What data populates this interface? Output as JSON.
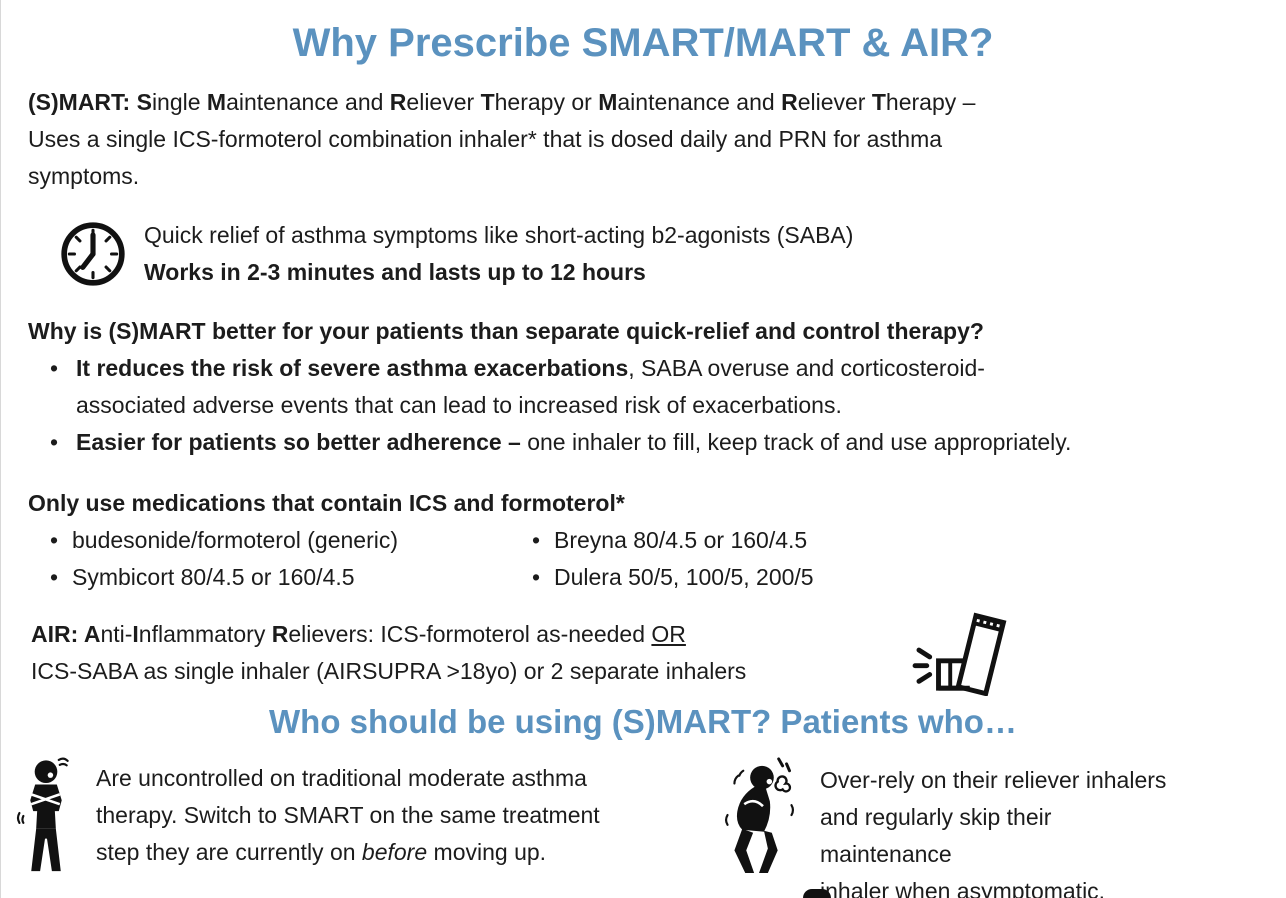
{
  "page": {
    "accent_color": "#5b92bf",
    "ink_color": "#1c1c1c"
  },
  "ui": {
    "bullet": "•"
  },
  "header": {
    "title": "Why Prescribe SMART/MART & AIR?"
  },
  "smart_definition": {
    "segments": [
      {
        "t": "(S)MART: ",
        "b": true
      },
      {
        "t": "S",
        "b": true
      },
      {
        "t": "ingle "
      },
      {
        "t": "M",
        "b": true
      },
      {
        "t": "aintenance and "
      },
      {
        "t": "R",
        "b": true
      },
      {
        "t": "eliever "
      },
      {
        "t": "T",
        "b": true
      },
      {
        "t": "herapy or "
      },
      {
        "t": "M",
        "b": true
      },
      {
        "t": "aintenance and "
      },
      {
        "t": "R",
        "b": true
      },
      {
        "t": "eliever "
      },
      {
        "t": "T",
        "b": true
      },
      {
        "t": "herapy –\nUses a single ICS-formoterol combination inhaler* that is dosed daily and PRN for asthma\nsymptoms."
      }
    ]
  },
  "quick_relief": {
    "icon": "clock-icon",
    "line1": "Quick relief of asthma symptoms like short-acting b2-agonists (SABA)",
    "line2": "Works in 2-3 minutes and lasts up to 12 hours"
  },
  "why_better": {
    "heading": "Why is (S)MART better for your patients than separate quick-relief and control therapy?",
    "bullets": [
      {
        "segments": [
          {
            "t": "It reduces the risk of severe asthma exacerbations",
            "b": true
          },
          {
            "t": ", SABA overuse and corticosteroid-\nassociated adverse events that can lead to increased risk of exacerbations."
          }
        ]
      },
      {
        "segments": [
          {
            "t": "Easier for patients so better adherence – ",
            "b": true
          },
          {
            "t": "one inhaler to fill, keep track of and use appropriately."
          }
        ]
      }
    ]
  },
  "medications": {
    "heading": "Only use medications that contain ICS and formoterol*",
    "column1": [
      "budesonide/formoterol (generic)",
      "Symbicort 80/4.5 or 160/4.5"
    ],
    "column2": [
      "Breyna 80/4.5 or 160/4.5",
      "Dulera 50/5, 100/5, 200/5"
    ]
  },
  "air_definition": {
    "icon": "inhaler-icon",
    "segments": [
      {
        "t": "AIR: ",
        "b": true
      },
      {
        "t": "A",
        "b": true
      },
      {
        "t": "nti-"
      },
      {
        "t": "I",
        "b": true
      },
      {
        "t": "nflammatory "
      },
      {
        "t": "R",
        "b": true
      },
      {
        "t": "elievers: ICS-formoterol as-needed "
      },
      {
        "t": "OR",
        "u": true
      },
      {
        "t": "\nICS-SABA as single inhaler (AIRSUPRA >18yo) or 2 separate inhalers"
      }
    ]
  },
  "who_should": {
    "heading": "Who should be using (S)MART? Patients who…",
    "items": [
      {
        "icon": "wheezing-person-icon",
        "segments": [
          {
            "t": "Are uncontrolled on traditional moderate asthma\ntherapy. Switch to SMART on the same treatment\nstep they are currently on "
          },
          {
            "t": "before",
            "i": true
          },
          {
            "t": " moving up."
          }
        ]
      },
      {
        "icon": "coughing-person-icon",
        "segments": [
          {
            "t": "Over-rely on their reliever inhalers\nand regularly skip their maintenance\ninhaler when asymptomatic."
          }
        ]
      }
    ]
  }
}
